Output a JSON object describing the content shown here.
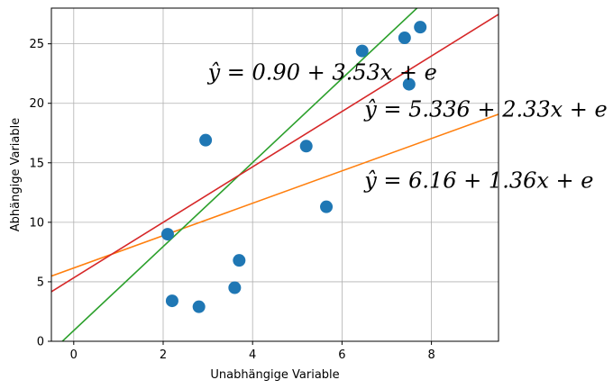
{
  "chart_data": {
    "type": "scatter",
    "title": "",
    "xlabel": "Unabhängige Variable",
    "ylabel": "Abhängige Variable",
    "xlim": [
      -0.5,
      9.5
    ],
    "ylim": [
      0,
      28
    ],
    "xticks": [
      0,
      2,
      4,
      6,
      8
    ],
    "yticks": [
      0,
      5,
      10,
      15,
      20,
      25
    ],
    "grid": true,
    "points": {
      "color": "#1f77b4",
      "x": [
        2.1,
        2.2,
        2.8,
        2.95,
        3.6,
        3.7,
        5.2,
        5.65,
        6.45,
        7.4,
        7.5,
        7.75
      ],
      "y": [
        9.0,
        3.4,
        2.9,
        16.9,
        4.5,
        6.8,
        16.4,
        11.3,
        24.4,
        25.5,
        21.6,
        26.4
      ]
    },
    "lines": [
      {
        "intercept": 6.16,
        "slope": 1.36,
        "color": "#ff7f0e"
      },
      {
        "intercept": 0.9,
        "slope": 3.53,
        "color": "#2ca02c"
      },
      {
        "intercept": 5.336,
        "slope": 2.33,
        "color": "#d62728"
      }
    ],
    "annotations": [
      {
        "text": "ŷ = 0.90 + 3.53x + e",
        "x": 3.0,
        "y": 22.0
      },
      {
        "text": "ŷ = 5.336 + 2.33x + e",
        "x": 6.5,
        "y": 18.9
      },
      {
        "text": "ŷ = 6.16 + 1.36x + e",
        "x": 6.5,
        "y": 12.9
      }
    ]
  }
}
